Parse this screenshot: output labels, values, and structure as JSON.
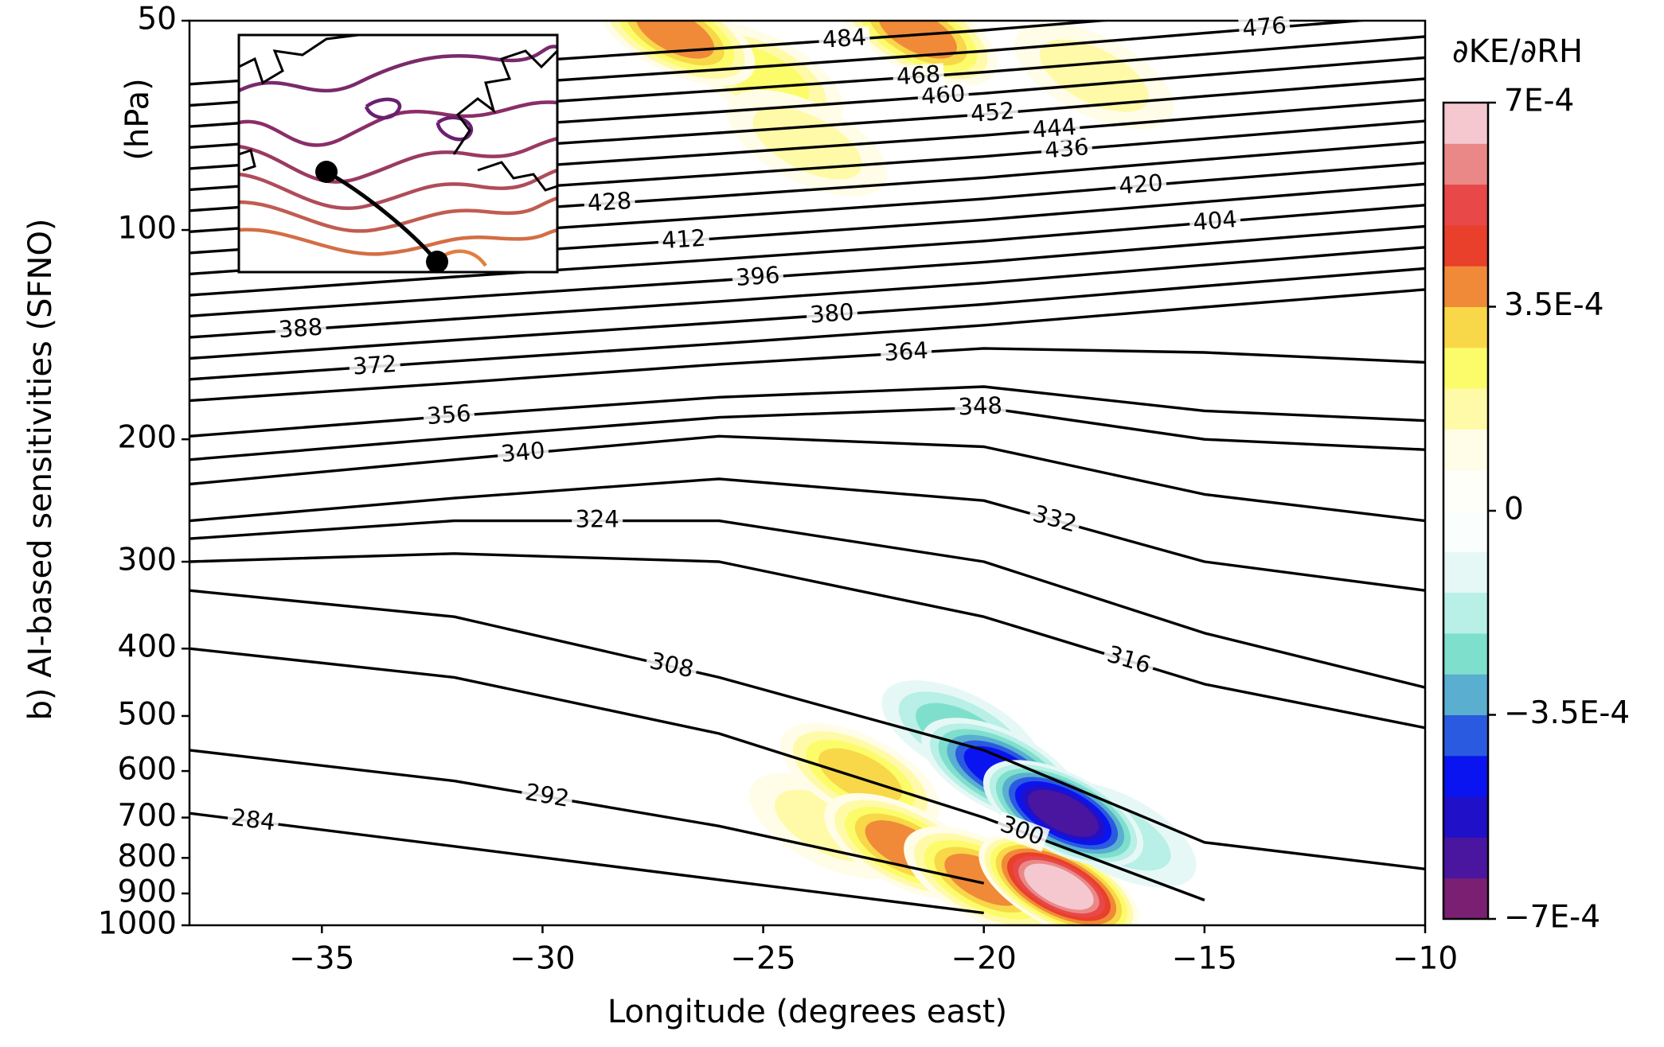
{
  "chart_data": {
    "type": "contour",
    "xlabel": "Longitude (degrees east)",
    "ylabel": "b) AI-based sensitivities (SFNO)",
    "yunit": "(hPa)",
    "xlim": [
      -38,
      -10
    ],
    "xticks": [
      {
        "value": -35,
        "label": "−35"
      },
      {
        "value": -30,
        "label": "−30"
      },
      {
        "value": -25,
        "label": "−25"
      },
      {
        "value": -20,
        "label": "−20"
      },
      {
        "value": -15,
        "label": "−15"
      },
      {
        "value": -10,
        "label": "−10"
      }
    ],
    "ylim": [
      1000,
      50
    ],
    "ylog": true,
    "yticks": [
      50,
      100,
      200,
      300,
      400,
      500,
      600,
      700,
      800,
      900,
      1000
    ],
    "x": [
      -38,
      -32,
      -26,
      -20,
      -15,
      -10
    ],
    "series": [
      {
        "name": "284",
        "color": "#000000",
        "values": [
          690,
          770,
          860,
          960,
          null,
          null
        ]
      },
      {
        "name": "292",
        "color": "#000000",
        "values": [
          560,
          620,
          720,
          870,
          null,
          null
        ]
      },
      {
        "name": "300",
        "color": "#000000",
        "values": [
          400,
          440,
          530,
          700,
          920,
          null
        ]
      },
      {
        "name": "308",
        "color": "#000000",
        "values": [
          330,
          360,
          440,
          560,
          760,
          830
        ]
      },
      {
        "name": "316",
        "color": "#000000",
        "values": [
          300,
          292,
          300,
          360,
          450,
          520
        ]
      },
      {
        "name": "324",
        "color": "#000000",
        "values": [
          278,
          262,
          262,
          300,
          380,
          455
        ]
      },
      {
        "name": "332",
        "color": "#000000",
        "values": [
          262,
          243,
          228,
          245,
          300,
          330
        ]
      },
      {
        "name": "340",
        "color": "#000000",
        "values": [
          232,
          214,
          198,
          205,
          240,
          262
        ]
      },
      {
        "name": "348",
        "color": "#000000",
        "values": [
          214,
          199,
          186,
          180,
          200,
          207
        ]
      },
      {
        "name": "356",
        "color": "#000000",
        "values": [
          198,
          185,
          174,
          168,
          182,
          188
        ]
      },
      {
        "name": "364",
        "color": "#000000",
        "values": [
          176,
          166,
          156,
          148,
          150,
          155
        ]
      },
      {
        "name": "372",
        "color": "#000000",
        "values": [
          164.0,
          154.4,
          145.7,
          137.1,
          129.1,
          121.8
        ]
      },
      {
        "name": "380",
        "color": "#000000",
        "values": [
          153.0,
          144.0,
          135.9,
          127.9,
          120.4,
          113.6
        ]
      },
      {
        "name": "388",
        "color": "#000000",
        "values": [
          142.7,
          134.3,
          126.7,
          119.2,
          112.3,
          105.9
        ]
      },
      {
        "name": "396",
        "color": "#000000",
        "values": [
          133.0,
          125.2,
          118.2,
          111.2,
          104.7,
          98.8
        ]
      },
      {
        "name": "404",
        "color": "#000000",
        "values": [
          124.1,
          116.8,
          110.2,
          103.7,
          97.7,
          92.1
        ]
      },
      {
        "name": "412",
        "color": "#000000",
        "values": [
          115.7,
          108.9,
          102.8,
          96.7,
          91.1,
          85.9
        ]
      },
      {
        "name": "420",
        "color": "#000000",
        "values": [
          107.9,
          101.6,
          95.8,
          90.2,
          84.9,
          80.1
        ]
      },
      {
        "name": "428",
        "color": "#000000",
        "values": [
          100.6,
          94.7,
          89.4,
          84.1,
          79.2,
          74.7
        ]
      },
      {
        "name": "436",
        "color": "#000000",
        "values": [
          93.8,
          88.3,
          83.3,
          78.4,
          73.9,
          69.7
        ]
      },
      {
        "name": "444",
        "color": "#000000",
        "values": [
          87.5,
          82.4,
          77.7,
          73.1,
          68.9,
          65.0
        ]
      },
      {
        "name": "452",
        "color": "#000000",
        "values": [
          81.6,
          76.8,
          72.5,
          68.2,
          64.2,
          60.6
        ]
      },
      {
        "name": "460",
        "color": "#000000",
        "values": [
          76.1,
          71.6,
          67.6,
          63.6,
          59.9,
          56.5
        ]
      },
      {
        "name": "468",
        "color": "#000000",
        "values": [
          71.0,
          66.8,
          63.0,
          59.3,
          55.9,
          52.7
        ]
      },
      {
        "name": "476",
        "color": "#000000",
        "values": [
          66.2,
          62.3,
          58.8,
          55.3,
          52.1,
          49.1
        ]
      },
      {
        "name": "484",
        "color": "#000000",
        "values": [
          61.7,
          58.1,
          54.8,
          51.6,
          48.6,
          45.8
        ]
      }
    ],
    "extrema": [
      {
        "x": -25,
        "y": 60,
        "value": 0.00022
      },
      {
        "x": -24,
        "y": 75,
        "value": 0.00018
      },
      {
        "x": -27,
        "y": 52,
        "value": 0.0004
      },
      {
        "x": -21.5,
        "y": 52,
        "value": 0.0004
      },
      {
        "x": -17.5,
        "y": 60,
        "value": 0.00015
      },
      {
        "x": -23.5,
        "y": 720,
        "value": 0.0002
      },
      {
        "x": -22.8,
        "y": 610,
        "value": 0.00028
      },
      {
        "x": -21.8,
        "y": 770,
        "value": 0.0004
      },
      {
        "x": -20,
        "y": 860,
        "value": 0.0004
      },
      {
        "x": -18.3,
        "y": 880,
        "value": 0.0007
      },
      {
        "x": -20.5,
        "y": 530,
        "value": -0.00025
      },
      {
        "x": -17,
        "y": 740,
        "value": -0.0002
      },
      {
        "x": -19.6,
        "y": 600,
        "value": -0.00045
      },
      {
        "x": -18.2,
        "y": 690,
        "value": -0.0006
      }
    ],
    "colorbar": {
      "title": "∂KE/∂RH",
      "clim": [
        -0.0007,
        0.0007
      ],
      "ticks": [
        {
          "value": 0.0007,
          "label": "7E-4"
        },
        {
          "value": 0.00035,
          "label": "3.5E-4"
        },
        0,
        {
          "value": -0.00035,
          "label": "−3.5E-4"
        },
        {
          "value": -0.0007,
          "label": "−7E-4"
        }
      ],
      "colors": [
        "#7b1f73",
        "#4a16a0",
        "#2010c8",
        "#0a14f0",
        "#2a5adf",
        "#5aaed0",
        "#7ee0cc",
        "#b8efe6",
        "#e6f8f6",
        "#fafffe",
        "#fffffa",
        "#fffde8",
        "#fffaa8",
        "#fcfc6a",
        "#f8d848",
        "#f08a38",
        "#e8402a",
        "#e84848",
        "#ea8888",
        "#f5c8d0"
      ]
    }
  }
}
